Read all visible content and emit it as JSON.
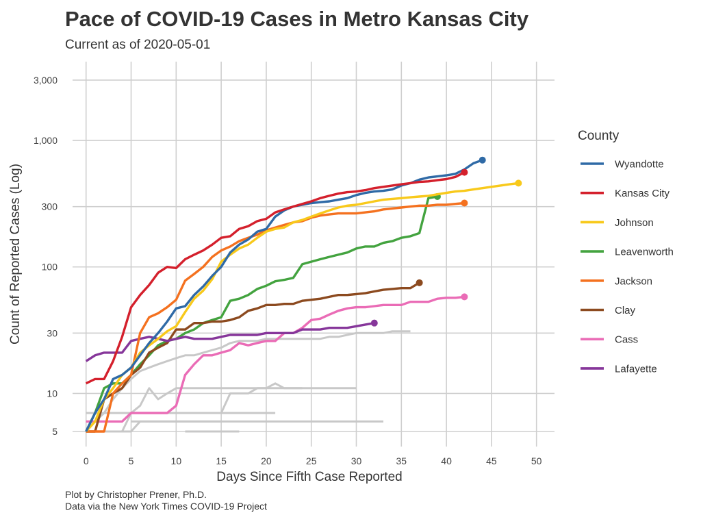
{
  "chart_data": {
    "type": "line",
    "title": "Pace of COVID-19 Cases in Metro Kansas City",
    "subtitle": "Current as of 2020-05-01",
    "xlabel": "Days Since Fifth Case Reported",
    "ylabel": "Count of Reported Cases (Log)",
    "y_scale": "log",
    "xlim": [
      -1.5,
      52
    ],
    "ylim": [
      3.8,
      4200
    ],
    "x_ticks": [
      0,
      5,
      10,
      15,
      20,
      25,
      30,
      35,
      40,
      45,
      50
    ],
    "y_ticks": [
      5,
      10,
      30,
      100,
      300,
      1000,
      3000
    ],
    "y_tick_labels": [
      "5",
      "10",
      "30",
      "100",
      "300",
      "1,000",
      "3,000"
    ],
    "legend_title": "County",
    "legend_position": "right",
    "series": [
      {
        "name": "Wyandotte",
        "color": "#2f6aa6",
        "x": [
          0,
          1,
          2,
          3,
          4,
          5,
          6,
          7,
          8,
          9,
          10,
          11,
          12,
          13,
          14,
          15,
          16,
          17,
          18,
          19,
          20,
          21,
          22,
          23,
          24,
          25,
          26,
          27,
          28,
          29,
          30,
          31,
          32,
          33,
          34,
          35,
          36,
          37,
          38,
          39,
          40,
          41,
          42,
          43,
          44
        ],
        "y": [
          5,
          7,
          9,
          13,
          14,
          16,
          20,
          25,
          30,
          37,
          47,
          49,
          60,
          70,
          85,
          100,
          130,
          150,
          165,
          190,
          200,
          250,
          280,
          300,
          310,
          320,
          325,
          330,
          340,
          350,
          370,
          385,
          395,
          400,
          410,
          440,
          460,
          490,
          510,
          520,
          530,
          545,
          590,
          660,
          700
        ]
      },
      {
        "name": "Kansas City",
        "color": "#d4202c",
        "x": [
          0,
          1,
          2,
          3,
          4,
          5,
          6,
          7,
          8,
          9,
          10,
          11,
          12,
          13,
          14,
          15,
          16,
          17,
          18,
          19,
          20,
          21,
          22,
          23,
          24,
          25,
          26,
          27,
          28,
          29,
          30,
          31,
          32,
          33,
          34,
          35,
          36,
          37,
          38,
          39,
          40,
          41,
          42
        ],
        "y": [
          12,
          13,
          13,
          18,
          28,
          48,
          60,
          72,
          90,
          100,
          98,
          115,
          125,
          135,
          150,
          170,
          175,
          200,
          210,
          230,
          240,
          270,
          285,
          300,
          315,
          330,
          350,
          365,
          380,
          390,
          395,
          405,
          420,
          430,
          440,
          450,
          460,
          470,
          475,
          485,
          495,
          515,
          560
        ]
      },
      {
        "name": "Johnson",
        "color": "#f8c91b",
        "x": [
          0,
          1,
          2,
          3,
          4,
          5,
          6,
          7,
          8,
          9,
          10,
          11,
          12,
          13,
          14,
          15,
          16,
          17,
          18,
          19,
          20,
          21,
          22,
          23,
          24,
          25,
          26,
          27,
          28,
          29,
          30,
          31,
          32,
          33,
          34,
          35,
          36,
          37,
          38,
          39,
          40,
          41,
          42,
          43,
          44,
          45,
          46,
          47,
          48
        ],
        "y": [
          5,
          6,
          9,
          11,
          14,
          16,
          21,
          24,
          27,
          31,
          34,
          44,
          56,
          65,
          80,
          110,
          125,
          140,
          150,
          170,
          190,
          200,
          205,
          225,
          235,
          250,
          265,
          280,
          295,
          305,
          310,
          320,
          330,
          340,
          345,
          350,
          355,
          360,
          365,
          375,
          385,
          395,
          400,
          410,
          420,
          430,
          440,
          450,
          460
        ]
      },
      {
        "name": "Leavenworth",
        "color": "#43a33f",
        "x": [
          0,
          1,
          2,
          3,
          4,
          5,
          6,
          7,
          8,
          9,
          10,
          11,
          12,
          13,
          14,
          15,
          16,
          17,
          18,
          19,
          20,
          21,
          22,
          23,
          24,
          25,
          26,
          27,
          28,
          29,
          30,
          31,
          32,
          33,
          34,
          35,
          36,
          37,
          38,
          39
        ],
        "y": [
          5,
          7,
          11,
          12,
          12,
          14,
          17,
          20,
          24,
          26,
          27,
          30,
          32,
          36,
          38,
          40,
          54,
          56,
          60,
          67,
          71,
          77,
          79,
          82,
          105,
          110,
          115,
          120,
          125,
          130,
          140,
          145,
          145,
          155,
          160,
          170,
          175,
          185,
          350,
          360
        ]
      },
      {
        "name": "Jackson",
        "color": "#f4711f",
        "x": [
          0,
          1,
          2,
          3,
          4,
          5,
          6,
          7,
          8,
          9,
          10,
          11,
          12,
          13,
          14,
          15,
          16,
          17,
          18,
          19,
          20,
          21,
          22,
          23,
          24,
          25,
          26,
          27,
          28,
          29,
          30,
          31,
          32,
          33,
          34,
          35,
          36,
          37,
          38,
          39,
          40,
          41,
          42
        ],
        "y": [
          5,
          5,
          5,
          10,
          12,
          14,
          30,
          40,
          43,
          48,
          55,
          78,
          88,
          100,
          120,
          135,
          145,
          160,
          170,
          180,
          195,
          205,
          215,
          225,
          230,
          245,
          255,
          260,
          265,
          265,
          265,
          270,
          275,
          285,
          290,
          295,
          300,
          305,
          305,
          310,
          310,
          315,
          320
        ]
      },
      {
        "name": "Clay",
        "color": "#8c4a1f",
        "x": [
          0,
          1,
          2,
          3,
          4,
          5,
          6,
          7,
          8,
          9,
          10,
          11,
          12,
          13,
          14,
          15,
          16,
          17,
          18,
          19,
          20,
          21,
          22,
          23,
          24,
          25,
          26,
          27,
          28,
          29,
          30,
          31,
          32,
          33,
          34,
          35,
          36,
          37
        ],
        "y": [
          5,
          5,
          9,
          10,
          11,
          14,
          16,
          21,
          23,
          25,
          32,
          32,
          36,
          36,
          37,
          37,
          38,
          40,
          45,
          47,
          50,
          50,
          51,
          51,
          54,
          55,
          56,
          58,
          60,
          60,
          61,
          62,
          64,
          66,
          67,
          68,
          68,
          75
        ]
      },
      {
        "name": "Cass",
        "color": "#ea6cb6",
        "x": [
          0,
          1,
          2,
          3,
          4,
          5,
          6,
          7,
          8,
          9,
          10,
          11,
          12,
          13,
          14,
          15,
          16,
          17,
          18,
          19,
          20,
          21,
          22,
          23,
          24,
          25,
          26,
          27,
          28,
          29,
          30,
          31,
          32,
          33,
          34,
          35,
          36,
          37,
          38,
          39,
          40,
          41,
          42
        ],
        "y": [
          6,
          6,
          6,
          6,
          6,
          7,
          7,
          7,
          7,
          7,
          8,
          14,
          17,
          20,
          20,
          21,
          22,
          25,
          24,
          25,
          26,
          26,
          30,
          30,
          33,
          38,
          39,
          42,
          45,
          47,
          48,
          48,
          49,
          50,
          50,
          50,
          53,
          53,
          53,
          56,
          57,
          57,
          58
        ]
      },
      {
        "name": "Lafayette",
        "color": "#86369a",
        "x": [
          0,
          1,
          2,
          3,
          4,
          5,
          6,
          7,
          8,
          9,
          10,
          11,
          12,
          13,
          14,
          15,
          16,
          17,
          18,
          19,
          20,
          21,
          22,
          23,
          24,
          25,
          26,
          27,
          28,
          29,
          30,
          31,
          32
        ],
        "y": [
          18,
          20,
          21,
          21,
          21,
          26,
          27,
          28,
          27,
          26,
          27,
          28,
          27,
          27,
          27,
          28,
          29,
          29,
          29,
          29,
          30,
          30,
          30,
          30,
          32,
          32,
          32,
          33,
          33,
          33,
          34,
          35,
          36
        ]
      }
    ],
    "background_series": [
      {
        "x": [
          0,
          1,
          2,
          3,
          4,
          5,
          6,
          7,
          8,
          9,
          10,
          11,
          12,
          13,
          14,
          15,
          16,
          17,
          18,
          19,
          20,
          21,
          22,
          23,
          24,
          25,
          26,
          27,
          28,
          29,
          30,
          31,
          32,
          33,
          34,
          35,
          36
        ],
        "y": [
          5,
          6,
          7,
          9,
          11,
          13,
          15,
          16,
          17,
          18,
          19,
          20,
          20,
          21,
          22,
          23,
          25,
          26,
          26,
          26,
          27,
          27,
          27,
          27,
          27,
          27,
          27,
          28,
          28,
          29,
          30,
          30,
          30,
          30,
          31,
          31,
          31
        ]
      },
      {
        "x": [
          0,
          1,
          2,
          3,
          4,
          5,
          6,
          7,
          8,
          9,
          10,
          11,
          12,
          13,
          14,
          15,
          16,
          17,
          18,
          19,
          20,
          21,
          22,
          23,
          24,
          25,
          26,
          27,
          28,
          29,
          30
        ],
        "y": [
          5,
          5,
          5,
          5,
          5,
          7,
          8,
          11,
          9,
          10,
          11,
          11,
          11,
          11,
          11,
          11,
          11,
          11,
          11,
          11,
          11,
          11,
          11,
          11,
          11,
          11,
          11,
          11,
          11,
          11,
          11
        ]
      },
      {
        "x": [
          5,
          15,
          16,
          17,
          18,
          19,
          20,
          21,
          22,
          23,
          24
        ],
        "y": [
          7,
          7,
          10,
          10,
          10,
          11,
          11,
          12,
          11,
          11,
          11
        ]
      },
      {
        "x": [
          0,
          1,
          2,
          3,
          4,
          5,
          6,
          7,
          8,
          9,
          10,
          11,
          12,
          13,
          14,
          15,
          16,
          17,
          18,
          19,
          20,
          21
        ],
        "y": [
          7,
          7,
          7,
          7,
          7,
          7,
          7,
          7,
          7,
          7,
          7,
          7,
          7,
          7,
          7,
          7,
          7,
          7,
          7,
          7,
          7,
          7
        ]
      },
      {
        "x": [
          5,
          33
        ],
        "y": [
          6,
          6
        ]
      },
      {
        "x": [
          0,
          5,
          6,
          15
        ],
        "y": [
          5,
          5,
          6,
          6
        ]
      },
      {
        "x": [
          11,
          17
        ],
        "y": [
          5,
          5
        ]
      }
    ]
  },
  "caption": {
    "line1": "Plot by Christopher Prener, Ph.D.",
    "line2": "Data via the New York Times COVID-19 Project"
  }
}
